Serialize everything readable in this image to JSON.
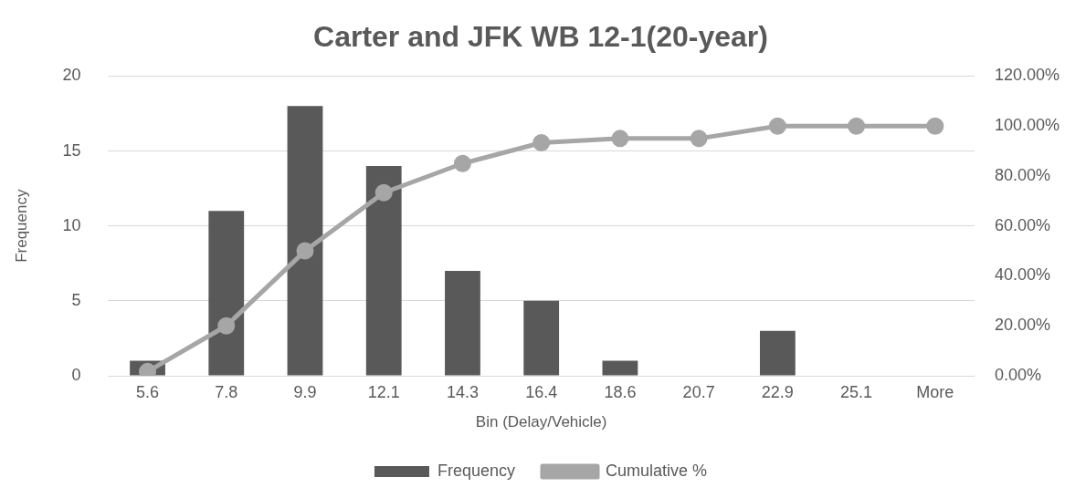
{
  "chart_data": {
    "type": "bar",
    "title": "Carter and JFK WB 12-1(20-year)",
    "xlabel": "Bin (Delay/Vehicle)",
    "ylabel": "Frequency",
    "categories": [
      "5.6",
      "7.8",
      "9.9",
      "12.1",
      "14.3",
      "16.4",
      "18.6",
      "20.7",
      "22.9",
      "25.1",
      "More"
    ],
    "series": [
      {
        "name": "Frequency",
        "color": "#595959",
        "values": [
          1,
          11,
          18,
          14,
          7,
          5,
          1,
          0,
          3,
          0,
          0
        ]
      },
      {
        "name": "Cumulative %",
        "type": "line",
        "axis": "y2",
        "color": "#a6a6a6",
        "marker": "circle",
        "values": [
          1.7,
          20,
          50,
          73.3,
          85,
          93.3,
          95,
          95,
          100,
          100,
          100
        ]
      }
    ],
    "ylim": [
      0,
      20
    ],
    "yticks": [
      0,
      5,
      10,
      15,
      20
    ],
    "y2lim": [
      0,
      120
    ],
    "y2ticks": [
      {
        "value": 0,
        "label": "0.00%"
      },
      {
        "value": 20,
        "label": "20.00%"
      },
      {
        "value": 40,
        "label": "40.00%"
      },
      {
        "value": 60,
        "label": "60.00%"
      },
      {
        "value": 80,
        "label": "80.00%"
      },
      {
        "value": 100,
        "label": "100.00%"
      },
      {
        "value": 120,
        "label": "120.00%"
      }
    ],
    "grid": "y",
    "legend": "bottom"
  }
}
